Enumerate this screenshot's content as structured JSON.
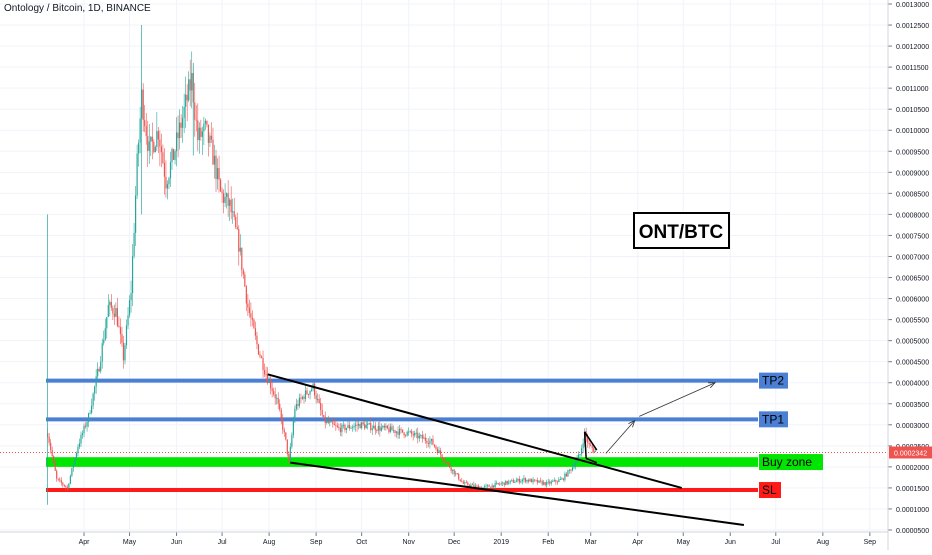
{
  "header": {
    "title": "Ontology / Bitcoin, 1D, BINANCE"
  },
  "colors": {
    "up": "#26a69a",
    "down": "#ef5350",
    "tp": "#4a7fd4",
    "buy": "#00e600",
    "sl": "#ff1a1a",
    "axis_text": "#131722",
    "price_line": "#ef5350"
  },
  "chart_data": {
    "type": "candlestick",
    "symbol": "ONT/BTC",
    "label_box": "ONT/BTC",
    "x_ticks": [
      "Apr",
      "May",
      "Jun",
      "Jul",
      "Aug",
      "Sep",
      "Oct",
      "Nov",
      "Dec",
      "2019",
      "Feb",
      "Mar",
      "Apr",
      "May",
      "Jun",
      "Jul",
      "Aug",
      "Sep"
    ],
    "y_ticks": [
      "0.0013000",
      "0.0012500",
      "0.0012000",
      "0.0011500",
      "0.0011000",
      "0.0010500",
      "0.0010000",
      "0.0009500",
      "0.0009000",
      "0.0008500",
      "0.0008000",
      "0.0007500",
      "0.0007000",
      "0.0006500",
      "0.0006000",
      "0.0005500",
      "0.0005000",
      "0.0004500",
      "0.0004000",
      "0.0003500",
      "0.0003000",
      "0.0002500",
      "0.0002000",
      "0.0001500",
      "0.0001000",
      "0.0000500"
    ],
    "ylim": [
      5e-05,
      0.0013
    ],
    "current_price": "0.0002342",
    "levels": [
      {
        "name": "TP2",
        "price": 0.000405,
        "color": "tp"
      },
      {
        "name": "TP1",
        "price": 0.000313,
        "color": "tp"
      },
      {
        "name": "Buy zone",
        "price_low": 0.0002,
        "price_high": 0.000223,
        "color": "buy"
      },
      {
        "name": "SL",
        "price": 0.000145,
        "color": "sl"
      }
    ],
    "price_path": [
      {
        "date": "2018-03-08",
        "price": 0.00028
      },
      {
        "date": "2018-03-14",
        "price": 0.00017
      },
      {
        "date": "2018-03-21",
        "price": 0.00015
      },
      {
        "date": "2018-03-28",
        "price": 0.00025
      },
      {
        "date": "2018-04-04",
        "price": 0.00032
      },
      {
        "date": "2018-04-11",
        "price": 0.00044
      },
      {
        "date": "2018-04-17",
        "price": 0.00058
      },
      {
        "date": "2018-04-22",
        "price": 0.00057
      },
      {
        "date": "2018-04-27",
        "price": 0.00046
      },
      {
        "date": "2018-05-02",
        "price": 0.00062
      },
      {
        "date": "2018-05-06",
        "price": 0.00092
      },
      {
        "date": "2018-05-09",
        "price": 0.00108
      },
      {
        "date": "2018-05-14",
        "price": 0.00095
      },
      {
        "date": "2018-05-20",
        "price": 0.001
      },
      {
        "date": "2018-05-25",
        "price": 0.00088
      },
      {
        "date": "2018-05-30",
        "price": 0.00094
      },
      {
        "date": "2018-06-05",
        "price": 0.00103
      },
      {
        "date": "2018-06-11",
        "price": 0.00112
      },
      {
        "date": "2018-06-15",
        "price": 0.00098
      },
      {
        "date": "2018-06-20",
        "price": 0.001
      },
      {
        "date": "2018-06-25",
        "price": 0.00094
      },
      {
        "date": "2018-06-30",
        "price": 0.00085
      },
      {
        "date": "2018-07-06",
        "price": 0.00082
      },
      {
        "date": "2018-07-12",
        "price": 0.00073
      },
      {
        "date": "2018-07-18",
        "price": 0.00058
      },
      {
        "date": "2018-07-24",
        "price": 0.00049
      },
      {
        "date": "2018-07-30",
        "price": 0.00042
      },
      {
        "date": "2018-08-06",
        "price": 0.00036
      },
      {
        "date": "2018-08-12",
        "price": 0.00026
      },
      {
        "date": "2018-08-14",
        "price": 0.00021
      },
      {
        "date": "2018-08-18",
        "price": 0.00034
      },
      {
        "date": "2018-08-24",
        "price": 0.00037
      },
      {
        "date": "2018-08-30",
        "price": 0.00039
      },
      {
        "date": "2018-09-06",
        "price": 0.00031
      },
      {
        "date": "2018-09-16",
        "price": 0.00029
      },
      {
        "date": "2018-09-30",
        "price": 0.0003
      },
      {
        "date": "2018-10-16",
        "price": 0.00029
      },
      {
        "date": "2018-11-01",
        "price": 0.00028
      },
      {
        "date": "2018-11-16",
        "price": 0.00026
      },
      {
        "date": "2018-11-26",
        "price": 0.00021
      },
      {
        "date": "2018-12-07",
        "price": 0.00016
      },
      {
        "date": "2018-12-19",
        "price": 0.00015
      },
      {
        "date": "2019-01-01",
        "price": 0.00016
      },
      {
        "date": "2019-01-16",
        "price": 0.00017
      },
      {
        "date": "2019-01-31",
        "price": 0.00016
      },
      {
        "date": "2019-02-10",
        "price": 0.00017
      },
      {
        "date": "2019-02-17",
        "price": 0.0002
      },
      {
        "date": "2019-02-22",
        "price": 0.00023
      },
      {
        "date": "2019-02-25",
        "price": 0.00028
      },
      {
        "date": "2019-02-28",
        "price": 0.00025
      },
      {
        "date": "2019-03-05",
        "price": 0.000234
      }
    ]
  }
}
